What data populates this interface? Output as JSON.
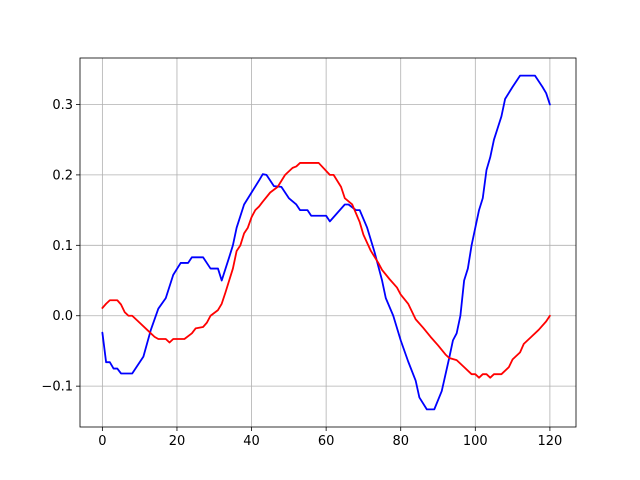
{
  "chart_data": {
    "type": "line",
    "title": "",
    "xlabel": "",
    "ylabel": "",
    "xlim": [
      -6,
      127
    ],
    "ylim": [
      -0.158,
      0.366
    ],
    "grid": true,
    "x_ticks": [
      0,
      20,
      40,
      60,
      80,
      100,
      120
    ],
    "y_ticks": [
      -0.1,
      0.0,
      0.1,
      0.2,
      0.3
    ],
    "x_tick_labels": [
      "0",
      "20",
      "40",
      "60",
      "80",
      "100",
      "120"
    ],
    "y_tick_labels": [
      "−0.1",
      "0.0",
      "0.1",
      "0.2",
      "0.3"
    ],
    "series": [
      {
        "color": "#0000ff",
        "points": [
          [
            0,
            -0.024
          ],
          [
            1,
            -0.066
          ],
          [
            2,
            -0.066
          ],
          [
            3,
            -0.075
          ],
          [
            4,
            -0.075
          ],
          [
            5,
            -0.082
          ],
          [
            6,
            -0.082
          ],
          [
            8,
            -0.082
          ],
          [
            11,
            -0.058
          ],
          [
            13,
            -0.02
          ],
          [
            15,
            0.01
          ],
          [
            17,
            0.025
          ],
          [
            19,
            0.058
          ],
          [
            21,
            0.075
          ],
          [
            23,
            0.075
          ],
          [
            24,
            0.083
          ],
          [
            27,
            0.083
          ],
          [
            29,
            0.067
          ],
          [
            31,
            0.067
          ],
          [
            32,
            0.05
          ],
          [
            34,
            0.083
          ],
          [
            35,
            0.1
          ],
          [
            36,
            0.125
          ],
          [
            38,
            0.158
          ],
          [
            40,
            0.175
          ],
          [
            42,
            0.192
          ],
          [
            43,
            0.201
          ],
          [
            44,
            0.2
          ],
          [
            46,
            0.184
          ],
          [
            48,
            0.183
          ],
          [
            50,
            0.167
          ],
          [
            52,
            0.158
          ],
          [
            53,
            0.15
          ],
          [
            55,
            0.15
          ],
          [
            56,
            0.142
          ],
          [
            60,
            0.142
          ],
          [
            61,
            0.134
          ],
          [
            65,
            0.158
          ],
          [
            66,
            0.158
          ],
          [
            68,
            0.15
          ],
          [
            69,
            0.15
          ],
          [
            71,
            0.125
          ],
          [
            73,
            0.09
          ],
          [
            75,
            0.05
          ],
          [
            76,
            0.025
          ],
          [
            78,
            0.0
          ],
          [
            80,
            -0.035
          ],
          [
            82,
            -0.065
          ],
          [
            84,
            -0.092
          ],
          [
            85,
            -0.116
          ],
          [
            87,
            -0.133
          ],
          [
            89,
            -0.133
          ],
          [
            91,
            -0.107
          ],
          [
            93,
            -0.06
          ],
          [
            94,
            -0.035
          ],
          [
            95,
            -0.025
          ],
          [
            96,
            0.0
          ],
          [
            97,
            0.05
          ],
          [
            98,
            0.067
          ],
          [
            99,
            0.1
          ],
          [
            100,
            0.125
          ],
          [
            101,
            0.15
          ],
          [
            102,
            0.167
          ],
          [
            103,
            0.207
          ],
          [
            104,
            0.225
          ],
          [
            105,
            0.25
          ],
          [
            107,
            0.283
          ],
          [
            108,
            0.308
          ],
          [
            110,
            0.325
          ],
          [
            112,
            0.341
          ],
          [
            116,
            0.341
          ],
          [
            118,
            0.325
          ],
          [
            119,
            0.316
          ],
          [
            120,
            0.3
          ]
        ]
      },
      {
        "color": "#ff0000",
        "points": [
          [
            0,
            0.011
          ],
          [
            1,
            0.017
          ],
          [
            2,
            0.022
          ],
          [
            3,
            0.022
          ],
          [
            4,
            0.022
          ],
          [
            5,
            0.016
          ],
          [
            6,
            0.005
          ],
          [
            7,
            0.0
          ],
          [
            8,
            0.0
          ],
          [
            10,
            -0.01
          ],
          [
            12,
            -0.02
          ],
          [
            14,
            -0.03
          ],
          [
            15,
            -0.033
          ],
          [
            17,
            -0.033
          ],
          [
            18,
            -0.038
          ],
          [
            19,
            -0.033
          ],
          [
            22,
            -0.033
          ],
          [
            24,
            -0.025
          ],
          [
            25,
            -0.018
          ],
          [
            27,
            -0.016
          ],
          [
            28,
            -0.01
          ],
          [
            29,
            0.0
          ],
          [
            31,
            0.008
          ],
          [
            32,
            0.017
          ],
          [
            33,
            0.033
          ],
          [
            34,
            0.05
          ],
          [
            35,
            0.067
          ],
          [
            36,
            0.092
          ],
          [
            37,
            0.1
          ],
          [
            38,
            0.117
          ],
          [
            39,
            0.125
          ],
          [
            40,
            0.14
          ],
          [
            41,
            0.15
          ],
          [
            42,
            0.155
          ],
          [
            43,
            0.162
          ],
          [
            45,
            0.175
          ],
          [
            47,
            0.183
          ],
          [
            49,
            0.2
          ],
          [
            51,
            0.21
          ],
          [
            52,
            0.212
          ],
          [
            53,
            0.217
          ],
          [
            58,
            0.217
          ],
          [
            61,
            0.2
          ],
          [
            62,
            0.2
          ],
          [
            64,
            0.183
          ],
          [
            65,
            0.167
          ],
          [
            67,
            0.158
          ],
          [
            69,
            0.133
          ],
          [
            70,
            0.115
          ],
          [
            72,
            0.092
          ],
          [
            74,
            0.075
          ],
          [
            75,
            0.065
          ],
          [
            77,
            0.052
          ],
          [
            79,
            0.04
          ],
          [
            80,
            0.03
          ],
          [
            82,
            0.017
          ],
          [
            84,
            -0.005
          ],
          [
            86,
            -0.017
          ],
          [
            88,
            -0.03
          ],
          [
            90,
            -0.042
          ],
          [
            92,
            -0.055
          ],
          [
            93,
            -0.06
          ],
          [
            95,
            -0.063
          ],
          [
            97,
            -0.073
          ],
          [
            99,
            -0.083
          ],
          [
            100,
            -0.083
          ],
          [
            101,
            -0.088
          ],
          [
            102,
            -0.083
          ],
          [
            103,
            -0.083
          ],
          [
            104,
            -0.088
          ],
          [
            105,
            -0.083
          ],
          [
            107,
            -0.083
          ],
          [
            109,
            -0.073
          ],
          [
            110,
            -0.062
          ],
          [
            112,
            -0.052
          ],
          [
            113,
            -0.04
          ],
          [
            115,
            -0.03
          ],
          [
            117,
            -0.02
          ],
          [
            119,
            -0.008
          ],
          [
            120,
            0.0
          ]
        ]
      }
    ]
  }
}
